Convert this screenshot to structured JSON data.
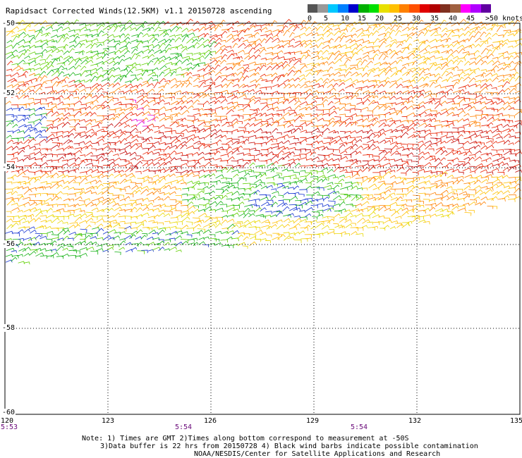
{
  "title": "Rapidsact Corrected Winds(12.5KM) v1.1 20150728 ascending",
  "legend": {
    "colors": [
      "#555555",
      "#999999",
      "#00c8ff",
      "#0080ff",
      "#0000cc",
      "#00b000",
      "#00e000",
      "#e8e000",
      "#ffc000",
      "#ff8000",
      "#ff5000",
      "#e00000",
      "#b00000",
      "#803020",
      "#a06040",
      "#ff00ff",
      "#b000ff",
      "#6000a0"
    ],
    "labels": [
      "0",
      "5",
      "10",
      "15",
      "20",
      "25",
      "30",
      "35",
      "40",
      "45",
      ">50 knots"
    ]
  },
  "axes": {
    "lat_labels": [
      "-50",
      "-52",
      "-54",
      "-56",
      "-58",
      "-60"
    ],
    "lon_labels": [
      "120",
      "123",
      "126",
      "129",
      "132",
      "135"
    ],
    "lat_range": [
      -60,
      -50
    ],
    "lon_range": [
      120,
      135
    ],
    "grid": true
  },
  "times": [
    "5:53",
    "5:54",
    "5:54"
  ],
  "notes": [
    "Note: 1) Times are GMT 2)Times along bottom correspond to measurement at -50S",
    "3)Data buffer is 22 hrs from 20150728 4) Black wind barbs indicate possible contamination",
    "NOAA/NESDIS/Center for Satellite Applications and Research"
  ]
}
